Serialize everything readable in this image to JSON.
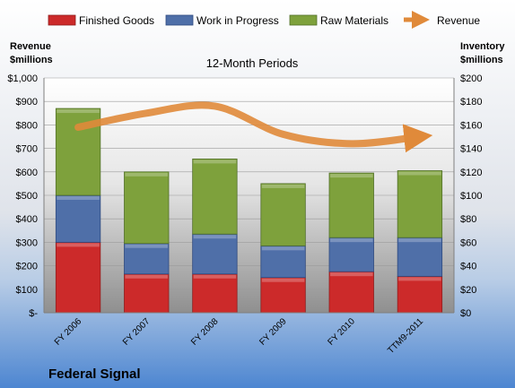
{
  "chart_data": {
    "type": "bar",
    "stacked": true,
    "subtitle": "12-Month Periods",
    "company": "Federal Signal",
    "categories": [
      "FY 2006",
      "FY 2007",
      "FY 2008",
      "FY 2009",
      "FY 2010",
      "TTM9-2011"
    ],
    "left_axis": {
      "title_line1": "Revenue",
      "title_line2": "$millions",
      "ylim": [
        0,
        1000
      ],
      "ticks": [
        "$-",
        "$100",
        "$200",
        "$300",
        "$400",
        "$500",
        "$600",
        "$700",
        "$800",
        "$900",
        "$1,000"
      ]
    },
    "right_axis": {
      "title_line1": "Inventory",
      "title_line2": "$millions",
      "ylim": [
        0,
        200
      ],
      "ticks": [
        "$0",
        "$20",
        "$40",
        "$60",
        "$80",
        "$100",
        "$120",
        "$140",
        "$160",
        "$180",
        "$200"
      ]
    },
    "series": [
      {
        "name": "Finished Goods",
        "axis": "right",
        "color": "#cc2a2a",
        "values": [
          60,
          33,
          33,
          30,
          35,
          31
        ]
      },
      {
        "name": "Work in Progress",
        "axis": "right",
        "color": "#4f6fa8",
        "values": [
          40,
          26,
          34,
          27,
          29,
          33
        ]
      },
      {
        "name": "Raw Materials",
        "axis": "right",
        "color": "#7ea13c",
        "values": [
          74,
          61,
          64,
          53,
          55,
          57
        ]
      },
      {
        "name": "Revenue",
        "axis": "left",
        "type": "line",
        "color": "#e08a3a",
        "values": [
          790,
          850,
          880,
          760,
          720,
          750
        ]
      }
    ],
    "legend_position": "top",
    "grid": true
  }
}
